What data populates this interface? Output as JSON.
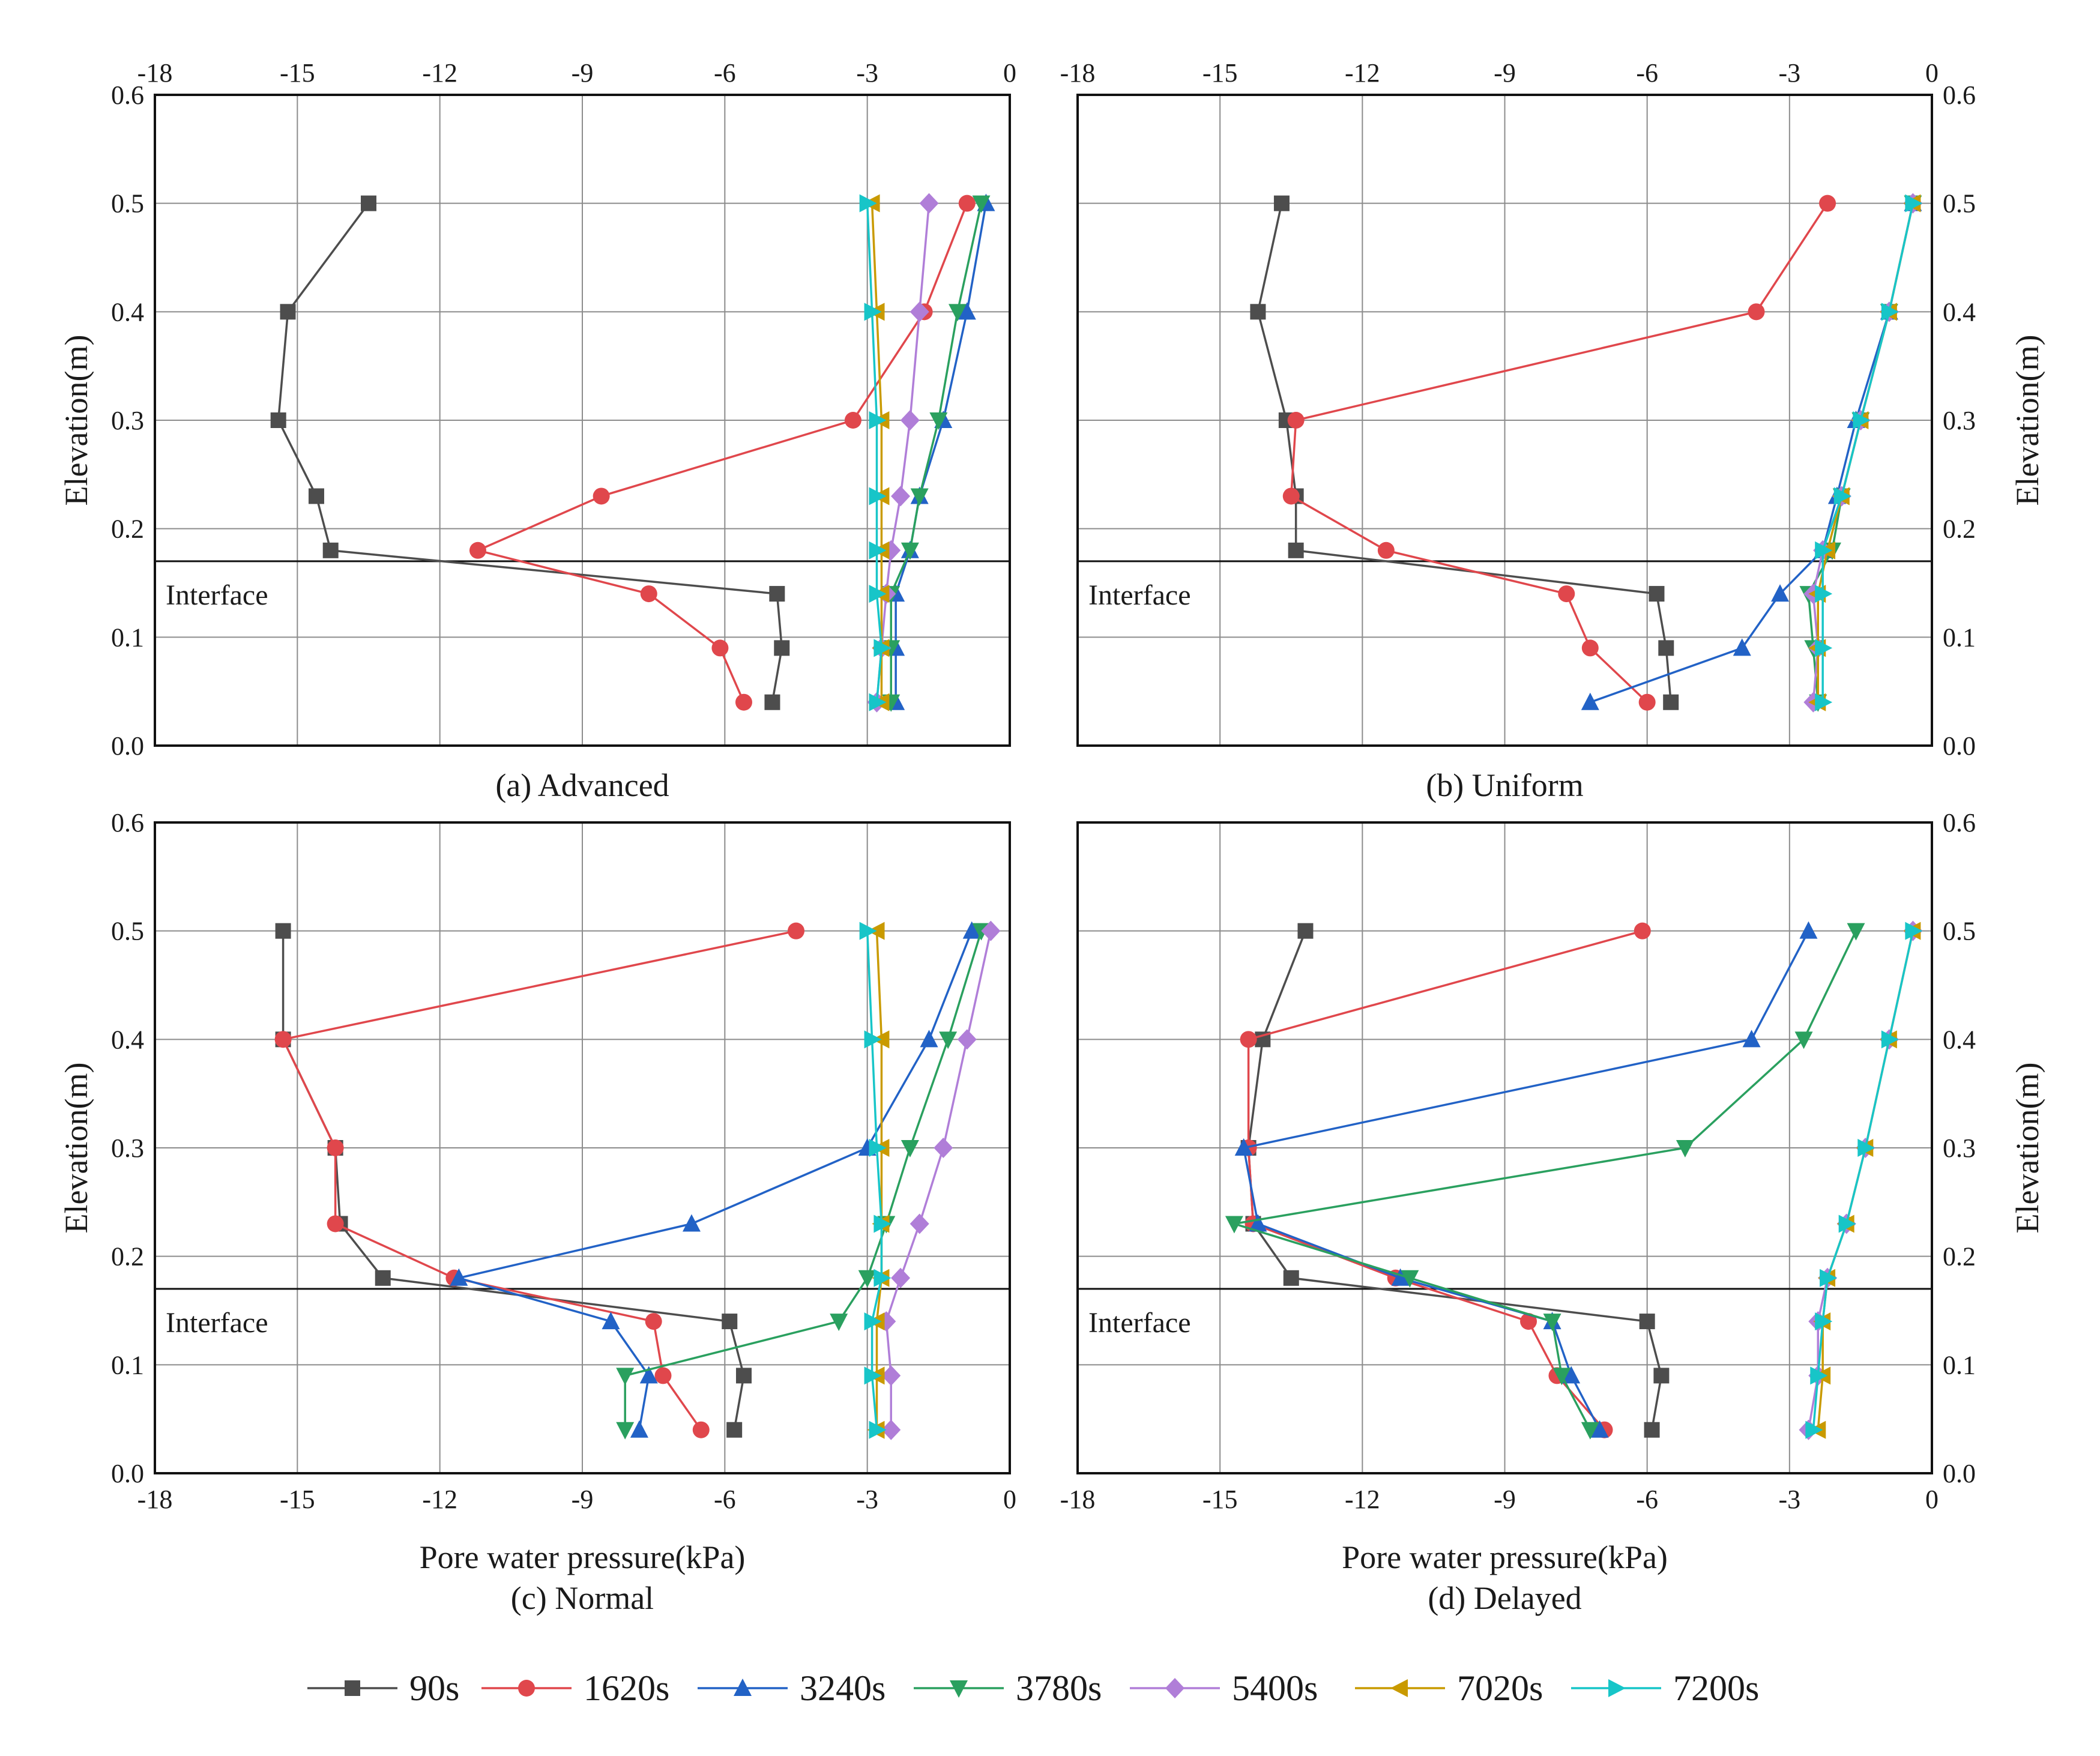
{
  "chart_data": {
    "type": "line",
    "x_label": "Pore water pressure(kPa)",
    "y_label": "Elevation(m)",
    "xlim": [
      -18,
      0
    ],
    "ylim": [
      0.0,
      0.6
    ],
    "x_ticks": [
      "-18",
      "-15",
      "-12",
      "-9",
      "-6",
      "-3",
      "0"
    ],
    "y_ticks": [
      "0.0",
      "0.1",
      "0.2",
      "0.3",
      "0.4",
      "0.5",
      "0.6"
    ],
    "interface_elevation": 0.17,
    "interface_label": "Interface",
    "legend": [
      {
        "name": "90s",
        "color": "#4d4d4d",
        "marker": "square"
      },
      {
        "name": "1620s",
        "color": "#e0474c",
        "marker": "circle"
      },
      {
        "name": "3240s",
        "color": "#2262c6",
        "marker": "triangle-up"
      },
      {
        "name": "3780s",
        "color": "#2aa05f",
        "marker": "triangle-down"
      },
      {
        "name": "5400s",
        "color": "#b07ed8",
        "marker": "diamond"
      },
      {
        "name": "7020s",
        "color": "#c99a00",
        "marker": "triangle-left"
      },
      {
        "name": "7200s",
        "color": "#17c5c8",
        "marker": "triangle-right"
      }
    ],
    "panels": [
      {
        "id": "a",
        "caption": "(a) Advanced",
        "series": [
          {
            "name": "90s",
            "x": [
              -13.5,
              -15.2,
              -15.4,
              -14.6,
              -14.3,
              -4.9,
              -4.8,
              -5.0
            ],
            "y": [
              0.5,
              0.4,
              0.3,
              0.23,
              0.18,
              0.14,
              0.09,
              0.04
            ]
          },
          {
            "name": "1620s",
            "x": [
              -0.9,
              -1.8,
              -3.3,
              -8.6,
              -11.2,
              -7.6,
              -6.1,
              -5.6
            ],
            "y": [
              0.5,
              0.4,
              0.3,
              0.23,
              0.18,
              0.14,
              0.09,
              0.04
            ]
          },
          {
            "name": "3240s",
            "x": [
              -0.5,
              -0.9,
              -1.4,
              -1.9,
              -2.1,
              -2.4,
              -2.4,
              -2.4
            ],
            "y": [
              0.5,
              0.4,
              0.3,
              0.23,
              0.18,
              0.14,
              0.09,
              0.04
            ]
          },
          {
            "name": "3780s",
            "x": [
              -0.6,
              -1.1,
              -1.5,
              -1.9,
              -2.1,
              -2.5,
              -2.5,
              -2.5
            ],
            "y": [
              0.5,
              0.4,
              0.3,
              0.23,
              0.18,
              0.14,
              0.09,
              0.04
            ]
          },
          {
            "name": "5400s",
            "x": [
              -1.7,
              -1.9,
              -2.1,
              -2.3,
              -2.5,
              -2.6,
              -2.7,
              -2.8
            ],
            "y": [
              0.5,
              0.4,
              0.3,
              0.23,
              0.18,
              0.14,
              0.09,
              0.04
            ]
          },
          {
            "name": "7020s",
            "x": [
              -2.9,
              -2.8,
              -2.7,
              -2.7,
              -2.7,
              -2.7,
              -2.7,
              -2.7
            ],
            "y": [
              0.5,
              0.4,
              0.3,
              0.23,
              0.18,
              0.14,
              0.09,
              0.04
            ]
          },
          {
            "name": "7200s",
            "x": [
              -3.0,
              -2.9,
              -2.8,
              -2.8,
              -2.8,
              -2.8,
              -2.7,
              -2.8
            ],
            "y": [
              0.5,
              0.4,
              0.3,
              0.23,
              0.18,
              0.14,
              0.09,
              0.04
            ]
          }
        ]
      },
      {
        "id": "b",
        "caption": "(b) Uniform",
        "series": [
          {
            "name": "90s",
            "x": [
              -13.7,
              -14.2,
              -13.6,
              -13.4,
              -13.4,
              -5.8,
              -5.6,
              -5.5
            ],
            "y": [
              0.5,
              0.4,
              0.3,
              0.23,
              0.18,
              0.14,
              0.09,
              0.04
            ]
          },
          {
            "name": "1620s",
            "x": [
              -2.2,
              -3.7,
              -13.4,
              -13.5,
              -11.5,
              -7.7,
              -7.2,
              -6.0
            ],
            "y": [
              0.5,
              0.4,
              0.3,
              0.23,
              0.18,
              0.14,
              0.09,
              0.04
            ]
          },
          {
            "name": "3240s",
            "x": [
              -0.4,
              -0.9,
              -1.6,
              -2.0,
              -2.3,
              -3.2,
              -4.0,
              -7.2
            ],
            "y": [
              0.5,
              0.4,
              0.3,
              0.23,
              0.18,
              0.14,
              0.09,
              0.04
            ]
          },
          {
            "name": "3780s",
            "x": [
              -0.4,
              -0.9,
              -1.5,
              -1.9,
              -2.1,
              -2.6,
              -2.5,
              -2.4
            ],
            "y": [
              0.5,
              0.4,
              0.3,
              0.23,
              0.18,
              0.14,
              0.09,
              0.04
            ]
          },
          {
            "name": "5400s",
            "x": [
              -0.4,
              -0.9,
              -1.5,
              -1.9,
              -2.3,
              -2.5,
              -2.4,
              -2.5
            ],
            "y": [
              0.5,
              0.4,
              0.3,
              0.23,
              0.18,
              0.14,
              0.09,
              0.04
            ]
          },
          {
            "name": "7020s",
            "x": [
              -0.4,
              -0.9,
              -1.5,
              -1.9,
              -2.2,
              -2.4,
              -2.4,
              -2.4
            ],
            "y": [
              0.5,
              0.4,
              0.3,
              0.23,
              0.18,
              0.14,
              0.09,
              0.04
            ]
          },
          {
            "name": "7200s",
            "x": [
              -0.4,
              -0.9,
              -1.5,
              -1.9,
              -2.3,
              -2.3,
              -2.3,
              -2.3
            ],
            "y": [
              0.5,
              0.4,
              0.3,
              0.23,
              0.18,
              0.14,
              0.09,
              0.04
            ]
          }
        ]
      },
      {
        "id": "c",
        "caption": "(c) Normal",
        "series": [
          {
            "name": "90s",
            "x": [
              -15.3,
              -15.3,
              -14.2,
              -14.1,
              -13.2,
              -5.9,
              -5.6,
              -5.8
            ],
            "y": [
              0.5,
              0.4,
              0.3,
              0.23,
              0.18,
              0.14,
              0.09,
              0.04
            ]
          },
          {
            "name": "1620s",
            "x": [
              -4.5,
              -15.3,
              -14.2,
              -14.2,
              -11.7,
              -7.5,
              -7.3,
              -6.5
            ],
            "y": [
              0.5,
              0.4,
              0.3,
              0.23,
              0.18,
              0.14,
              0.09,
              0.04
            ]
          },
          {
            "name": "3240s",
            "x": [
              -0.8,
              -1.7,
              -3.0,
              -6.7,
              -11.6,
              -8.4,
              -7.6,
              -7.8
            ],
            "y": [
              0.5,
              0.4,
              0.3,
              0.23,
              0.18,
              0.14,
              0.09,
              0.04
            ]
          },
          {
            "name": "3780s",
            "x": [
              -0.6,
              -1.3,
              -2.1,
              -2.6,
              -3.0,
              -3.6,
              -8.1,
              -8.1
            ],
            "y": [
              0.5,
              0.4,
              0.3,
              0.23,
              0.18,
              0.14,
              0.09,
              0.04
            ]
          },
          {
            "name": "5400s",
            "x": [
              -0.4,
              -0.9,
              -1.4,
              -1.9,
              -2.3,
              -2.6,
              -2.5,
              -2.5
            ],
            "y": [
              0.5,
              0.4,
              0.3,
              0.23,
              0.18,
              0.14,
              0.09,
              0.04
            ]
          },
          {
            "name": "7020s",
            "x": [
              -2.8,
              -2.7,
              -2.7,
              -2.7,
              -2.7,
              -2.8,
              -2.8,
              -2.8
            ],
            "y": [
              0.5,
              0.4,
              0.3,
              0.23,
              0.18,
              0.14,
              0.09,
              0.04
            ]
          },
          {
            "name": "7200s",
            "x": [
              -3.0,
              -2.9,
              -2.8,
              -2.7,
              -2.7,
              -2.9,
              -2.9,
              -2.8
            ],
            "y": [
              0.5,
              0.4,
              0.3,
              0.23,
              0.18,
              0.14,
              0.09,
              0.04
            ]
          }
        ]
      },
      {
        "id": "d",
        "caption": "(d) Delayed",
        "series": [
          {
            "name": "90s",
            "x": [
              -13.2,
              -14.1,
              -14.4,
              -14.3,
              -13.5,
              -6.0,
              -5.7,
              -5.9
            ],
            "y": [
              0.5,
              0.4,
              0.3,
              0.23,
              0.18,
              0.14,
              0.09,
              0.04
            ]
          },
          {
            "name": "1620s",
            "x": [
              -6.1,
              -14.4,
              -14.4,
              -14.3,
              -11.3,
              -8.5,
              -7.9,
              -6.9
            ],
            "y": [
              0.5,
              0.4,
              0.3,
              0.23,
              0.18,
              0.14,
              0.09,
              0.04
            ]
          },
          {
            "name": "3240s",
            "x": [
              -2.6,
              -3.8,
              -14.5,
              -14.2,
              -11.2,
              -8.0,
              -7.6,
              -7.0
            ],
            "y": [
              0.5,
              0.4,
              0.3,
              0.23,
              0.18,
              0.14,
              0.09,
              0.04
            ]
          },
          {
            "name": "3780s",
            "x": [
              -1.6,
              -2.7,
              -5.2,
              -14.7,
              -11.0,
              -8.0,
              -7.8,
              -7.2
            ],
            "y": [
              0.5,
              0.4,
              0.3,
              0.23,
              0.18,
              0.14,
              0.09,
              0.04
            ]
          },
          {
            "name": "5400s",
            "x": [
              -0.4,
              -0.9,
              -1.4,
              -1.8,
              -2.2,
              -2.4,
              -2.4,
              -2.6
            ],
            "y": [
              0.5,
              0.4,
              0.3,
              0.23,
              0.18,
              0.14,
              0.09,
              0.04
            ]
          },
          {
            "name": "7020s",
            "x": [
              -0.4,
              -0.9,
              -1.4,
              -1.8,
              -2.2,
              -2.3,
              -2.3,
              -2.4
            ],
            "y": [
              0.5,
              0.4,
              0.3,
              0.23,
              0.18,
              0.14,
              0.09,
              0.04
            ]
          },
          {
            "name": "7200s",
            "x": [
              -0.4,
              -0.9,
              -1.4,
              -1.8,
              -2.2,
              -2.3,
              -2.4,
              -2.5
            ],
            "y": [
              0.5,
              0.4,
              0.3,
              0.23,
              0.18,
              0.14,
              0.09,
              0.04
            ]
          }
        ]
      }
    ]
  }
}
